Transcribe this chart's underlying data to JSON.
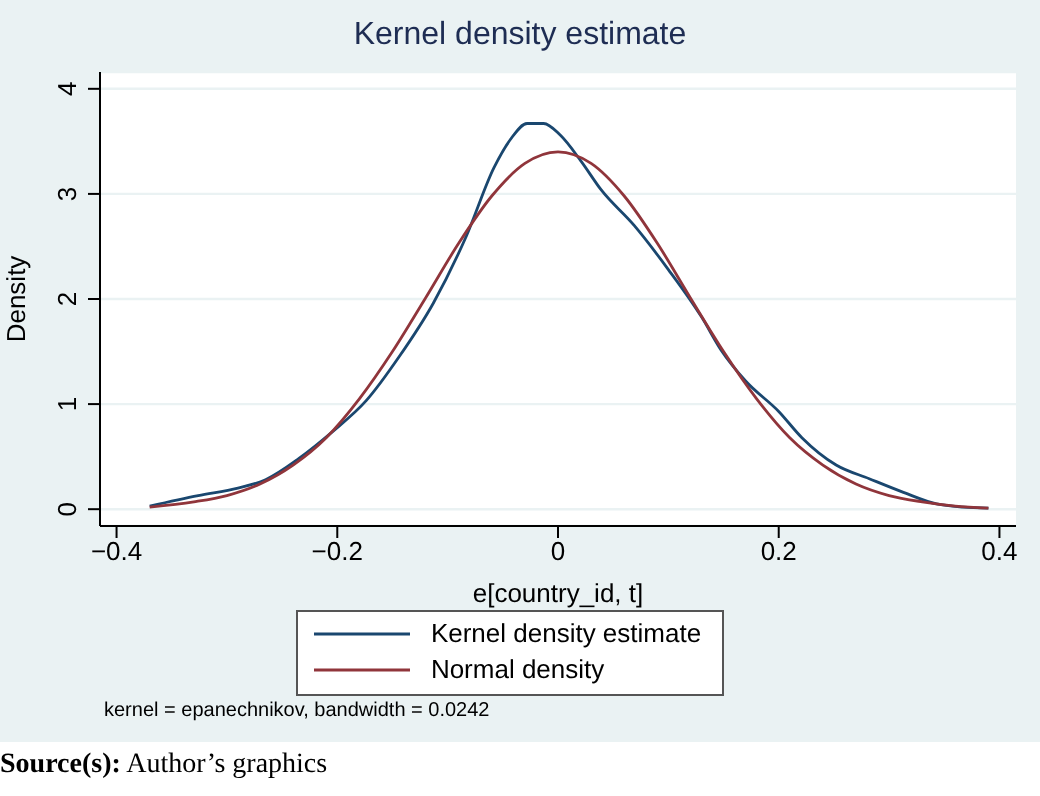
{
  "chart_data": {
    "type": "line",
    "title": "Kernel density estimate",
    "xlabel": "e[country_id, t]",
    "ylabel": "Density",
    "xlim": [
      -0.415,
      0.415
    ],
    "ylim": [
      -0.16,
      4.16
    ],
    "xticks": [
      {
        "value": -0.4,
        "label": "−0.4"
      },
      {
        "value": -0.2,
        "label": "−0.2"
      },
      0,
      0.2,
      0.4
    ],
    "yticks": [
      0,
      1,
      2,
      3,
      4
    ],
    "grid": "y",
    "legend": "bottom",
    "marker": "none",
    "line_style": "solid",
    "series": [
      {
        "name": "Kernel density estimate",
        "color": "#1a476f",
        "x": [
          -0.37,
          -0.326,
          -0.29,
          -0.265,
          -0.235,
          -0.204,
          -0.174,
          -0.144,
          -0.113,
          -0.083,
          -0.058,
          -0.043,
          -0.028,
          -0.013,
          0.002,
          0.021,
          0.039,
          0.069,
          0.1,
          0.13,
          0.148,
          0.17,
          0.2,
          0.221,
          0.252,
          0.282,
          0.313,
          0.343,
          0.367,
          0.39
        ],
        "values": [
          0.03,
          0.13,
          0.2,
          0.28,
          0.48,
          0.74,
          1.03,
          1.45,
          1.96,
          2.6,
          3.25,
          3.52,
          3.67,
          3.67,
          3.56,
          3.31,
          3.04,
          2.7,
          2.28,
          1.83,
          1.51,
          1.22,
          0.93,
          0.68,
          0.42,
          0.29,
          0.16,
          0.05,
          0.02,
          0.01
        ]
      },
      {
        "name": "Normal density",
        "color": "#90353b",
        "x": [
          -0.37,
          -0.33,
          -0.3,
          -0.27,
          -0.24,
          -0.21,
          -0.18,
          -0.15,
          -0.12,
          -0.09,
          -0.06,
          -0.03,
          0,
          0.03,
          0.06,
          0.09,
          0.12,
          0.15,
          0.18,
          0.21,
          0.24,
          0.27,
          0.3,
          0.33,
          0.36,
          0.39
        ],
        "values": [
          0.02,
          0.07,
          0.13,
          0.24,
          0.42,
          0.68,
          1.05,
          1.5,
          2.01,
          2.53,
          2.98,
          3.29,
          3.4,
          3.29,
          2.98,
          2.53,
          2.01,
          1.5,
          1.05,
          0.68,
          0.42,
          0.24,
          0.13,
          0.07,
          0.03,
          0.01
        ]
      }
    ],
    "annotations": [
      "kernel = epanechnikov, bandwidth = 0.0242",
      "Source(s): Author’s graphics"
    ]
  }
}
